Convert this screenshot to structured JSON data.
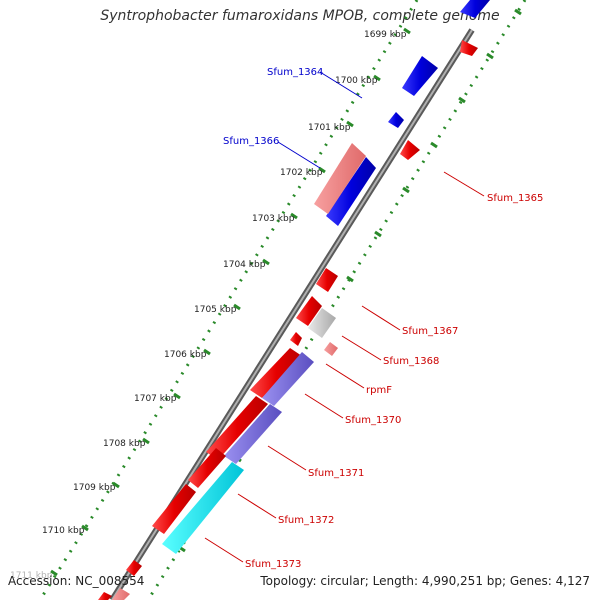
{
  "title": "Syntrophobacter fumaroxidans MPOB, complete genome",
  "footer": {
    "accession": "Accession: NC_008554",
    "topology": "Topology: circular; Length: 4,990,251 bp; Genes: 4,127"
  },
  "colors": {
    "backbone": "#7a7a7a",
    "tick_green": "#2a8a2a",
    "forward_gene": "#e60000",
    "reverse_gene": "#0000dd",
    "label_red": "#cc0000",
    "label_blue": "#0000cc"
  },
  "scale": {
    "unit": "kbp",
    "ticks": [
      {
        "kbp": 1699,
        "label": "1699 kbp"
      },
      {
        "kbp": 1700,
        "label": "1700 kbp"
      },
      {
        "kbp": 1701,
        "label": "1701 kbp"
      },
      {
        "kbp": 1702,
        "label": "1702 kbp"
      },
      {
        "kbp": 1703,
        "label": "1703 kbp"
      },
      {
        "kbp": 1704,
        "label": "1704 kbp"
      },
      {
        "kbp": 1705,
        "label": "1705 kbp"
      },
      {
        "kbp": 1706,
        "label": "1706 kbp"
      },
      {
        "kbp": 1707,
        "label": "1707 kbp"
      },
      {
        "kbp": 1708,
        "label": "1708 kbp"
      },
      {
        "kbp": 1709,
        "label": "1709 kbp"
      },
      {
        "kbp": 1710,
        "label": "1710 kbp"
      },
      {
        "kbp": 1711,
        "label": "1711 kbp"
      }
    ]
  },
  "labels": [
    {
      "text": "Sfum_1364",
      "strand": "reverse"
    },
    {
      "text": "Sfum_1366",
      "strand": "reverse"
    },
    {
      "text": "Sfum_1365",
      "strand": "forward"
    },
    {
      "text": "Sfum_1367",
      "strand": "forward"
    },
    {
      "text": "Sfum_1368",
      "strand": "forward"
    },
    {
      "text": "rpmF",
      "strand": "forward"
    },
    {
      "text": "Sfum_1370",
      "strand": "forward"
    },
    {
      "text": "Sfum_1371",
      "strand": "forward"
    },
    {
      "text": "Sfum_1372",
      "strand": "forward"
    },
    {
      "text": "Sfum_1373",
      "strand": "forward"
    }
  ]
}
